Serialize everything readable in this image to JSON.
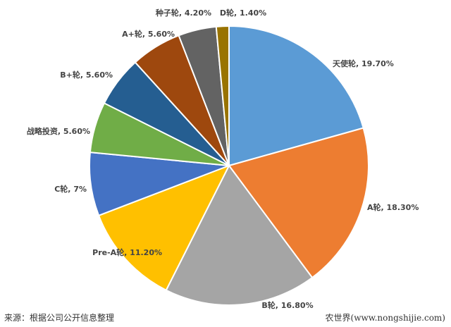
{
  "chart_data": {
    "type": "pie",
    "title": "",
    "slices": [
      {
        "label": "天使轮, 19.70%",
        "name": "天使轮",
        "value": 19.7,
        "color": "#5B9BD5"
      },
      {
        "label": "A轮, 18.30%",
        "name": "A轮",
        "value": 18.3,
        "color": "#ED7D31"
      },
      {
        "label": "B轮, 16.80%",
        "name": "B轮",
        "value": 16.8,
        "color": "#A5A5A5"
      },
      {
        "label": "Pre-A轮, 11.20%",
        "name": "Pre-A轮",
        "value": 11.2,
        "color": "#FFC000"
      },
      {
        "label": "C轮, 7%",
        "name": "C轮",
        "value": 7,
        "color": "#4472C4"
      },
      {
        "label": "战略投资, 5.60%",
        "name": "战略投资",
        "value": 5.6,
        "color": "#70AD47"
      },
      {
        "label": "B+轮, 5.60%",
        "name": "B+轮",
        "value": 5.6,
        "color": "#255E91"
      },
      {
        "label": "A+轮, 5.60%",
        "name": "A+轮",
        "value": 5.6,
        "color": "#9E480E"
      },
      {
        "label": "种子轮, 4.20%",
        "name": "种子轮",
        "value": 4.2,
        "color": "#636363"
      },
      {
        "label": "D轮, 1.40%",
        "name": "D轮",
        "value": 1.4,
        "color": "#997300"
      }
    ],
    "start": "top",
    "direction": "clockwise",
    "legend": "none"
  },
  "footer": {
    "source": "来源：根据公司公开信息整理",
    "credit": "农世界(www.nongshijie.com)"
  }
}
